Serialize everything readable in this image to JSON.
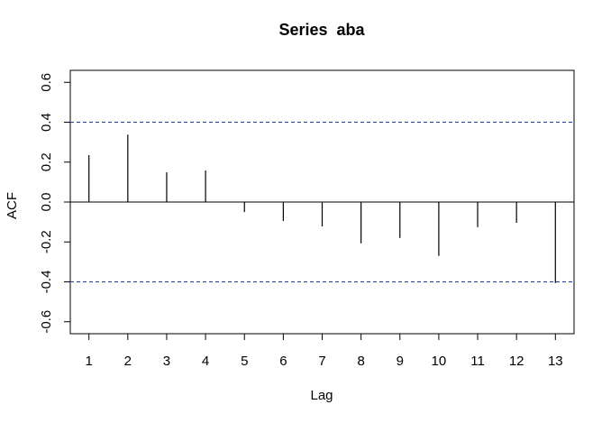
{
  "chart_data": {
    "type": "acf",
    "title": "Series  aba",
    "x_label": "Lag",
    "y_label": "ACF",
    "x": [
      1,
      2,
      3,
      4,
      5,
      6,
      7,
      8,
      9,
      10,
      11,
      12,
      13
    ],
    "values": [
      0.235,
      0.338,
      0.149,
      0.158,
      -0.05,
      -0.095,
      -0.122,
      -0.207,
      -0.18,
      -0.27,
      -0.126,
      -0.104,
      -0.406
    ],
    "ci": [
      -0.4,
      0.4
    ],
    "color": "#000000",
    "xlim": [
      0.52,
      13.48
    ],
    "xticks": [
      1,
      2,
      3,
      4,
      5,
      6,
      7,
      8,
      9,
      10,
      11,
      12,
      13
    ],
    "ylim": [
      -0.66,
      0.66
    ],
    "yticks": [
      -0.6,
      -0.4,
      -0.2,
      {
        "value": 0,
        "label": "0.0"
      },
      0.2,
      0.4,
      0.6
    ]
  }
}
